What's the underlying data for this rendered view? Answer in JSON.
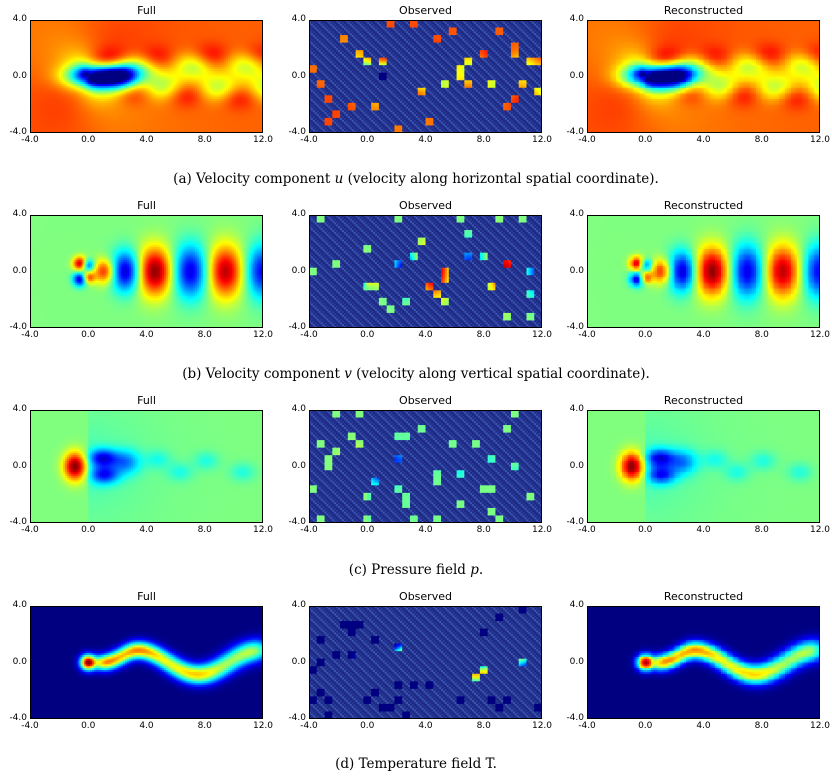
{
  "panel_titles": [
    "Full",
    "Observed",
    "Reconstructed"
  ],
  "y_ticks": [
    "4.0",
    "0.0",
    "-4.0"
  ],
  "x_ticks": [
    "-4.0",
    "0.0",
    "4.0",
    "8.0",
    "12.0"
  ],
  "rows": [
    {
      "field": "u",
      "caption_prefix": "(a) Velocity component ",
      "caption_var": "u",
      "caption_suffix": " (velocity along horizontal spatial coordinate)."
    },
    {
      "field": "v",
      "caption_prefix": "(b) Velocity component ",
      "caption_var": "v",
      "caption_suffix": " (velocity along vertical spatial coordinate)."
    },
    {
      "field": "p",
      "caption_prefix": "(c) Pressure field ",
      "caption_var": "p",
      "caption_suffix": "."
    },
    {
      "field": "T",
      "caption_prefix": "(d) Temperature field T.",
      "caption_var": "",
      "caption_suffix": ""
    }
  ],
  "colormap": "jet"
}
